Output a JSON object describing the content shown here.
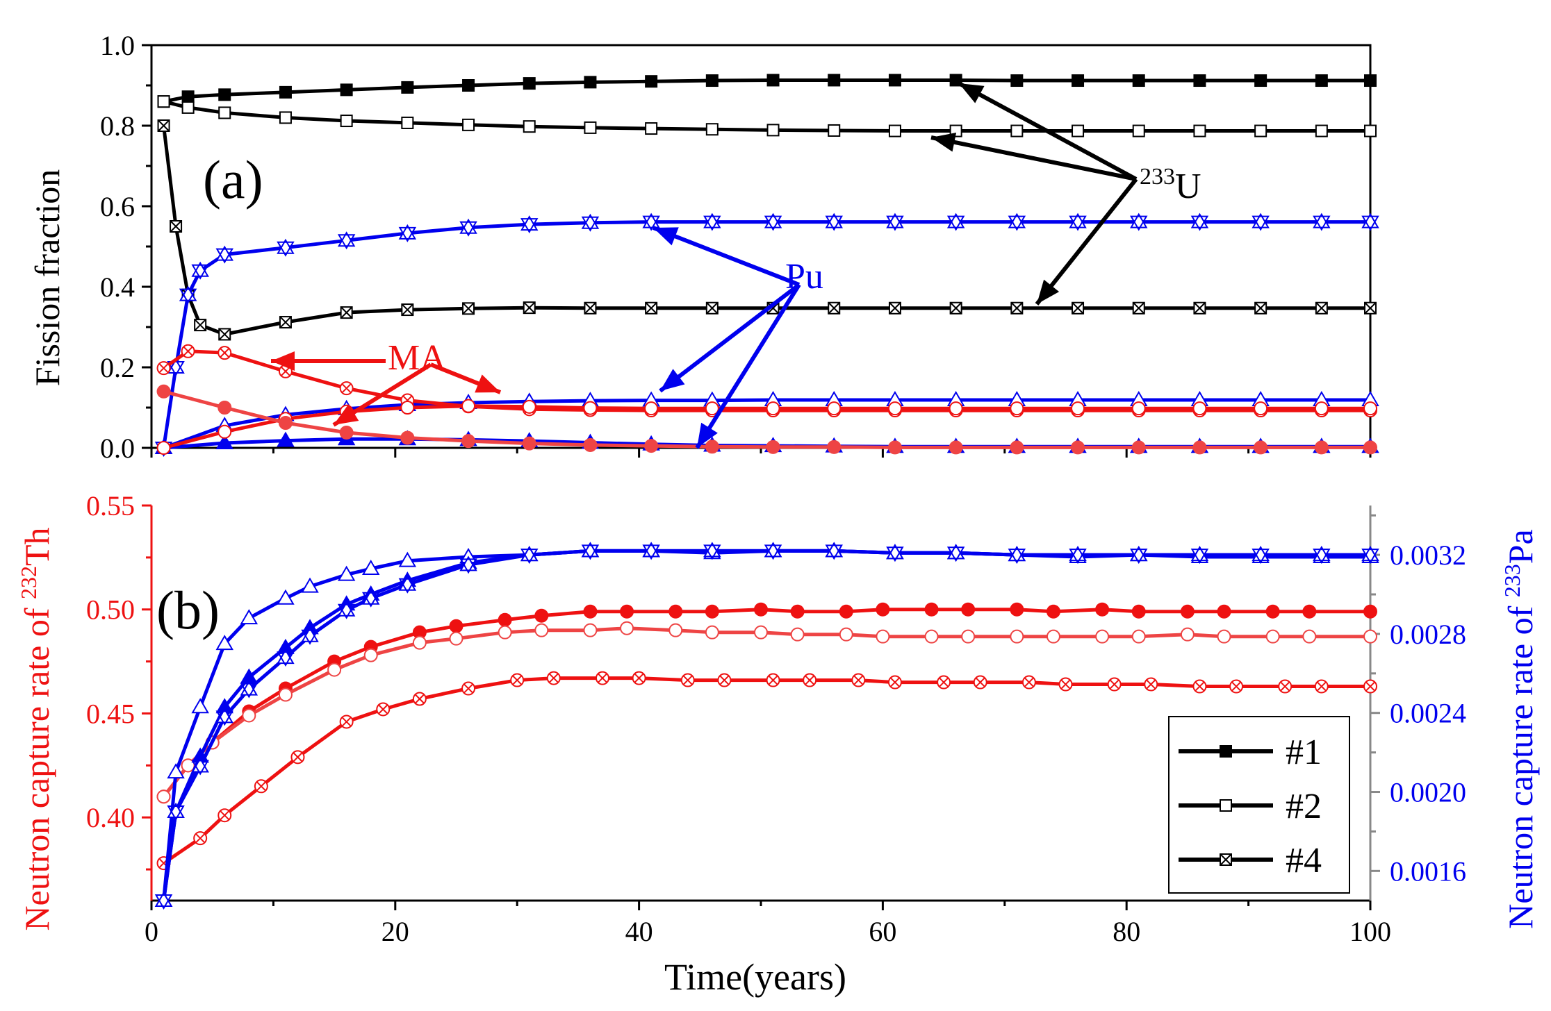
{
  "colors": {
    "black": "#000000",
    "red": "#ee1111",
    "red_light": "#ee4444",
    "blue": "#0000ee",
    "axis_gray": "#888888"
  },
  "chart_data": [
    {
      "id": "a",
      "type": "line",
      "panel_label": "(a)",
      "ylabel": "Fission fraction",
      "xlim": [
        0,
        100
      ],
      "ylim": [
        0,
        1.0
      ],
      "x_ticks": [
        0,
        20,
        40,
        60,
        80,
        100
      ],
      "y_ticks": [
        0.0,
        0.2,
        0.4,
        0.6,
        0.8,
        1.0
      ],
      "y_tick_labels": [
        "0.0",
        "0.2",
        "0.4",
        "0.6",
        "0.8",
        "1.0"
      ],
      "annotations": {
        "u233_prefix": "233",
        "u233_suffix": "U",
        "pu": "Pu",
        "ma": "MA"
      },
      "series": [
        {
          "name": "U233 #1",
          "case": "#1",
          "nuclide": "233U",
          "color": "black",
          "marker": "square_filled",
          "x": [
            1,
            3,
            6,
            11,
            16,
            21,
            26,
            31,
            36,
            41,
            46,
            51,
            56,
            61,
            66,
            71,
            76,
            81,
            86,
            91,
            96,
            100
          ],
          "y": [
            0.86,
            0.872,
            0.877,
            0.883,
            0.889,
            0.895,
            0.9,
            0.905,
            0.908,
            0.91,
            0.912,
            0.913,
            0.913,
            0.913,
            0.913,
            0.912,
            0.912,
            0.912,
            0.912,
            0.912,
            0.912,
            0.912
          ]
        },
        {
          "name": "U233 #2",
          "case": "#2",
          "nuclide": "233U",
          "color": "black",
          "marker": "square_open",
          "x": [
            1,
            3,
            6,
            11,
            16,
            21,
            26,
            31,
            36,
            41,
            46,
            51,
            56,
            61,
            66,
            71,
            76,
            81,
            86,
            91,
            96,
            100
          ],
          "y": [
            0.86,
            0.845,
            0.832,
            0.82,
            0.812,
            0.807,
            0.802,
            0.798,
            0.795,
            0.793,
            0.791,
            0.789,
            0.788,
            0.787,
            0.787,
            0.787,
            0.787,
            0.787,
            0.787,
            0.787,
            0.787,
            0.787
          ]
        },
        {
          "name": "U233 #4",
          "case": "#4",
          "nuclide": "233U",
          "color": "black",
          "marker": "square_x",
          "x": [
            1,
            2,
            3,
            4,
            6,
            11,
            16,
            21,
            26,
            31,
            36,
            41,
            46,
            51,
            56,
            61,
            66,
            71,
            76,
            81,
            86,
            91,
            96,
            100
          ],
          "y": [
            0.8,
            0.55,
            0.38,
            0.305,
            0.282,
            0.312,
            0.336,
            0.343,
            0.346,
            0.348,
            0.347,
            0.347,
            0.347,
            0.347,
            0.347,
            0.347,
            0.347,
            0.347,
            0.347,
            0.347,
            0.347,
            0.347,
            0.347,
            0.347
          ]
        },
        {
          "name": "Pu #4",
          "case": "#4",
          "nuclide": "Pu",
          "color": "blue",
          "marker": "tri_x",
          "x": [
            1,
            2,
            3,
            4,
            6,
            11,
            16,
            21,
            26,
            31,
            36,
            41,
            46,
            51,
            56,
            61,
            66,
            71,
            76,
            81,
            86,
            91,
            96,
            100
          ],
          "y": [
            0.0,
            0.2,
            0.38,
            0.44,
            0.48,
            0.497,
            0.515,
            0.533,
            0.547,
            0.555,
            0.559,
            0.561,
            0.561,
            0.561,
            0.561,
            0.561,
            0.561,
            0.561,
            0.561,
            0.561,
            0.561,
            0.561,
            0.561,
            0.561
          ]
        },
        {
          "name": "Pu #2",
          "case": "#2",
          "nuclide": "Pu",
          "color": "blue",
          "marker": "tri_open",
          "x": [
            1,
            6,
            11,
            16,
            21,
            26,
            31,
            36,
            41,
            46,
            51,
            56,
            61,
            66,
            71,
            76,
            81,
            86,
            91,
            96,
            100
          ],
          "y": [
            0.0,
            0.055,
            0.082,
            0.097,
            0.107,
            0.112,
            0.115,
            0.117,
            0.118,
            0.118,
            0.119,
            0.119,
            0.119,
            0.119,
            0.119,
            0.119,
            0.119,
            0.119,
            0.119,
            0.119,
            0.119
          ]
        },
        {
          "name": "Pu #1",
          "case": "#1",
          "nuclide": "Pu",
          "color": "blue",
          "marker": "tri_filled",
          "x": [
            1,
            6,
            11,
            16,
            21,
            26,
            31,
            36,
            41,
            46,
            51,
            56,
            61,
            66,
            71,
            76,
            81,
            86,
            91,
            96,
            100
          ],
          "y": [
            0.0,
            0.012,
            0.018,
            0.022,
            0.022,
            0.02,
            0.017,
            0.013,
            0.009,
            0.006,
            0.005,
            0.004,
            0.003,
            0.003,
            0.003,
            0.003,
            0.003,
            0.003,
            0.003,
            0.003,
            0.003
          ]
        },
        {
          "name": "MA #4",
          "case": "#4",
          "nuclide": "MA",
          "color": "red",
          "marker": "circle_x",
          "x": [
            1,
            3,
            6,
            11,
            16,
            21,
            26,
            31,
            36,
            41,
            46,
            51,
            56,
            61,
            66,
            71,
            76,
            81,
            86,
            91,
            96,
            100
          ],
          "y": [
            0.198,
            0.24,
            0.236,
            0.19,
            0.148,
            0.118,
            0.103,
            0.096,
            0.094,
            0.093,
            0.093,
            0.093,
            0.093,
            0.093,
            0.093,
            0.093,
            0.093,
            0.093,
            0.093,
            0.093,
            0.093,
            0.093
          ]
        },
        {
          "name": "MA #2",
          "case": "#2",
          "nuclide": "MA",
          "color": "red",
          "marker": "circle_open",
          "x": [
            1,
            6,
            11,
            16,
            21,
            26,
            31,
            36,
            41,
            46,
            51,
            56,
            61,
            66,
            71,
            76,
            81,
            86,
            91,
            96,
            100
          ],
          "y": [
            0.0,
            0.04,
            0.072,
            0.09,
            0.1,
            0.104,
            0.102,
            0.099,
            0.098,
            0.098,
            0.098,
            0.098,
            0.098,
            0.098,
            0.098,
            0.098,
            0.098,
            0.098,
            0.098,
            0.098,
            0.098
          ]
        },
        {
          "name": "MA #1",
          "case": "#1",
          "nuclide": "MA",
          "color": "red_light",
          "marker": "circle_filled",
          "x": [
            1,
            6,
            11,
            16,
            21,
            26,
            31,
            36,
            41,
            46,
            51,
            56,
            61,
            66,
            71,
            76,
            81,
            86,
            91,
            96,
            100
          ],
          "y": [
            0.14,
            0.1,
            0.062,
            0.038,
            0.025,
            0.017,
            0.011,
            0.007,
            0.005,
            0.003,
            0.002,
            0.002,
            0.001,
            0.001,
            0.001,
            0.001,
            0.001,
            0.001,
            0.001,
            0.001,
            0.001
          ]
        }
      ]
    },
    {
      "id": "b",
      "type": "line",
      "panel_label": "(b)",
      "xlabel": "Time(years)",
      "ylabel_left_prefix": "Neutron capture rate of ",
      "ylabel_left_sup": "232",
      "ylabel_left_suffix": "Th",
      "ylabel_right_prefix": "Neutron capture rate of ",
      "ylabel_right_sup": "233",
      "ylabel_right_suffix": "Pa",
      "xlim": [
        0,
        100
      ],
      "ylim_left": [
        0.36,
        0.55
      ],
      "ylim_right": [
        0.00145,
        0.00345
      ],
      "x_ticks": [
        0,
        20,
        40,
        60,
        80,
        100
      ],
      "x_tick_labels": [
        "0",
        "20",
        "40",
        "60",
        "80",
        "100"
      ],
      "y_left_ticks": [
        0.4,
        0.45,
        0.5,
        0.55
      ],
      "y_left_tick_labels": [
        "0.40",
        "0.45",
        "0.50",
        "0.55"
      ],
      "y_right_ticks": [
        0.0016,
        0.002,
        0.0024,
        0.0028,
        0.0032
      ],
      "y_right_tick_labels": [
        "0.0016",
        "0.0020",
        "0.0024",
        "0.0028",
        "0.0032"
      ],
      "legend": {
        "placement": "bottom-right",
        "entries": [
          {
            "label": "#1",
            "marker": "square_filled"
          },
          {
            "label": "#2",
            "marker": "square_open"
          },
          {
            "label": "#4",
            "marker": "square_x"
          }
        ]
      },
      "series": [
        {
          "name": "Th232 #1",
          "case": "#1",
          "axis": "left",
          "color": "red",
          "marker": "circle_filled",
          "x": [
            1,
            3,
            5,
            8,
            11,
            15,
            18,
            22,
            25,
            29,
            32,
            36,
            39,
            43,
            46,
            50,
            53,
            57,
            60,
            64,
            67,
            71,
            74,
            78,
            81,
            85,
            88,
            92,
            95,
            100
          ],
          "y": [
            0.41,
            0.425,
            0.436,
            0.451,
            0.462,
            0.475,
            0.482,
            0.489,
            0.492,
            0.495,
            0.497,
            0.499,
            0.499,
            0.499,
            0.499,
            0.5,
            0.499,
            0.499,
            0.5,
            0.5,
            0.5,
            0.5,
            0.499,
            0.5,
            0.499,
            0.499,
            0.499,
            0.499,
            0.499,
            0.499
          ]
        },
        {
          "name": "Th232 #2",
          "case": "#2",
          "axis": "left",
          "color": "red_light",
          "marker": "circle_open",
          "x": [
            1,
            3,
            5,
            8,
            11,
            15,
            18,
            22,
            25,
            29,
            32,
            36,
            39,
            43,
            46,
            50,
            53,
            57,
            60,
            64,
            67,
            71,
            74,
            78,
            81,
            85,
            88,
            92,
            95,
            100
          ],
          "y": [
            0.41,
            0.425,
            0.436,
            0.449,
            0.459,
            0.471,
            0.478,
            0.484,
            0.486,
            0.489,
            0.49,
            0.49,
            0.491,
            0.49,
            0.489,
            0.489,
            0.488,
            0.488,
            0.487,
            0.487,
            0.487,
            0.487,
            0.487,
            0.487,
            0.487,
            0.488,
            0.487,
            0.487,
            0.487,
            0.487
          ]
        },
        {
          "name": "Th232 #4",
          "case": "#4",
          "axis": "left",
          "color": "red",
          "marker": "circle_x",
          "x": [
            1,
            4,
            6,
            9,
            12,
            16,
            19,
            22,
            26,
            30,
            33,
            37,
            40,
            44,
            47,
            51,
            54,
            58,
            61,
            65,
            68,
            72,
            75,
            79,
            82,
            86,
            89,
            93,
            96,
            100
          ],
          "y": [
            0.378,
            0.39,
            0.401,
            0.415,
            0.429,
            0.446,
            0.452,
            0.457,
            0.462,
            0.466,
            0.467,
            0.467,
            0.467,
            0.466,
            0.466,
            0.466,
            0.466,
            0.466,
            0.465,
            0.465,
            0.465,
            0.465,
            0.464,
            0.464,
            0.464,
            0.463,
            0.463,
            0.463,
            0.463,
            0.463
          ]
        },
        {
          "name": "Pa233 #1",
          "case": "#1",
          "axis": "right",
          "color": "blue",
          "marker": "tri_filled",
          "x": [
            1,
            2,
            4,
            6,
            8,
            11,
            13,
            16,
            18,
            21,
            26,
            31,
            36,
            41,
            46,
            51,
            56,
            61,
            66,
            71,
            76,
            81,
            86,
            91,
            96,
            100
          ],
          "y": [
            0.00145,
            0.0019,
            0.00218,
            0.00243,
            0.00258,
            0.00273,
            0.00283,
            0.00295,
            0.003,
            0.00307,
            0.00316,
            0.0032,
            0.00322,
            0.00322,
            0.00322,
            0.00322,
            0.00322,
            0.00321,
            0.00321,
            0.0032,
            0.0032,
            0.0032,
            0.0032,
            0.0032,
            0.0032,
            0.0032
          ]
        },
        {
          "name": "Pa233 #2",
          "case": "#2",
          "axis": "right",
          "color": "blue",
          "marker": "tri_open",
          "x": [
            1,
            2,
            4,
            6,
            8,
            11,
            13,
            16,
            18,
            21,
            26,
            31,
            36,
            41,
            46,
            51,
            56,
            61,
            66,
            71,
            76,
            81,
            86,
            91,
            96,
            100
          ],
          "y": [
            0.00145,
            0.0021,
            0.00243,
            0.00275,
            0.00288,
            0.00298,
            0.00304,
            0.0031,
            0.00313,
            0.00317,
            0.00319,
            0.0032,
            0.00322,
            0.00322,
            0.00321,
            0.00322,
            0.00322,
            0.00321,
            0.00321,
            0.0032,
            0.00319,
            0.0032,
            0.00319,
            0.00319,
            0.00319,
            0.00319
          ]
        },
        {
          "name": "Pa233 #4",
          "case": "#4",
          "axis": "right",
          "color": "blue",
          "marker": "tri_x",
          "x": [
            1,
            2,
            4,
            6,
            8,
            11,
            13,
            16,
            18,
            21,
            26,
            31,
            36,
            41,
            46,
            51,
            56,
            61,
            66,
            71,
            76,
            81,
            86,
            91,
            96,
            100
          ],
          "y": [
            0.00145,
            0.0019,
            0.00213,
            0.00238,
            0.00252,
            0.00268,
            0.00279,
            0.00292,
            0.00298,
            0.00305,
            0.00315,
            0.0032,
            0.00322,
            0.00322,
            0.00322,
            0.00322,
            0.00322,
            0.00321,
            0.00321,
            0.0032,
            0.0032,
            0.0032,
            0.0032,
            0.0032,
            0.0032,
            0.0032
          ]
        }
      ]
    }
  ]
}
